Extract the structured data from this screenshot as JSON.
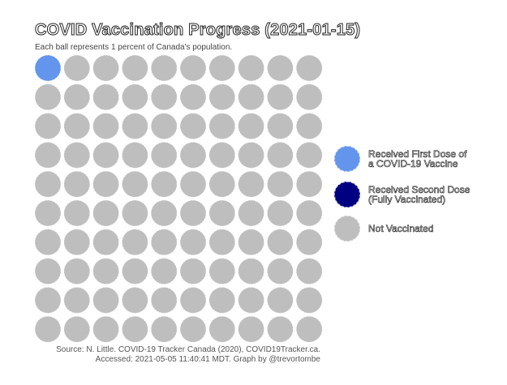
{
  "chart_data": {
    "type": "waffle",
    "title": "COVID Vaccination Progress (2021-01-15)",
    "subtitle": "Each ball represents 1 percent of Canada's population.",
    "grid": {
      "rows": 10,
      "cols": 10
    },
    "categories": [
      {
        "name": "Received First Dose of\na COVID-19 Vaccine",
        "value": 1,
        "color": "#6495ED"
      },
      {
        "name": "Received Second Dose\n(Fully Vaccinated)",
        "value": 0,
        "color": "#000080"
      },
      {
        "name": "Not Vaccinated",
        "value": 99,
        "color": "#BEBEBE"
      }
    ],
    "legend_position": "right"
  },
  "source_text": "Source: N. Little. COVID-19 Tracker Canada (2020), COVID19Tracker.ca.\nAccessed: 2021-05-05 11:40:41 MDT. Graph by @trevortombe"
}
